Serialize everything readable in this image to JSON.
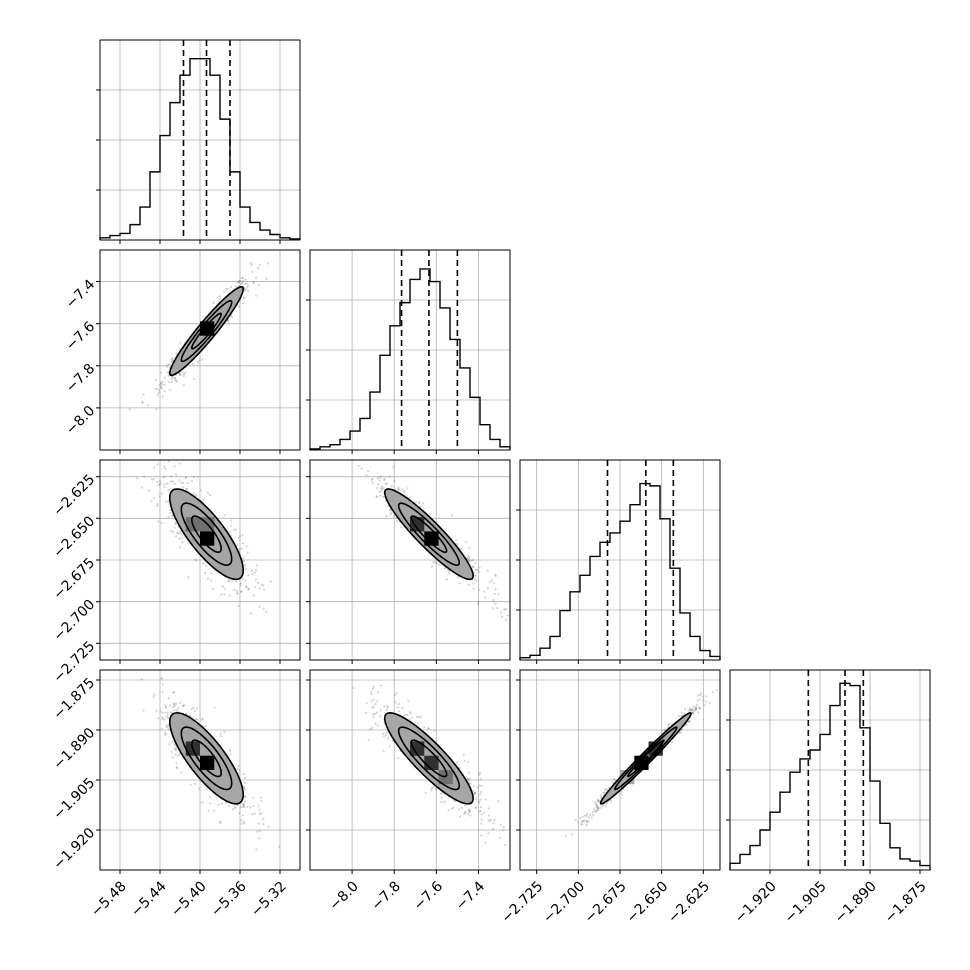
{
  "figure": {
    "type": "corner-plot",
    "colors": {
      "axes": "#000000",
      "grid": "#b0b0b0",
      "histogram": "#000000",
      "quantile_line": "#000000",
      "scatter": "#808080",
      "density": [
        "#ffffff",
        "#d9d9d9",
        "#a6a6a6",
        "#707070",
        "#303030",
        "#000000"
      ],
      "background": "#ffffff"
    }
  },
  "chart_data": {
    "type": "corner",
    "num_parameters": 4,
    "parameters": [
      {
        "index": 0,
        "label": "",
        "range": [
          -5.5,
          -5.3
        ],
        "ticks": [
          -5.48,
          -5.44,
          -5.4,
          -5.36,
          -5.32
        ],
        "tick_labels": [
          "−5.48",
          "−5.44",
          "−5.40",
          "−5.36",
          "−5.32"
        ],
        "quantiles": [
          -5.4165,
          -5.3935,
          -5.37
        ],
        "mean": -5.3935,
        "sd": 0.021,
        "hist": [
          2,
          4,
          6,
          14,
          30,
          62,
          95,
          125,
          150,
          165,
          165,
          150,
          110,
          62,
          30,
          16,
          9,
          5,
          2,
          1
        ],
        "hist_max": 182
      },
      {
        "index": 1,
        "label": "",
        "range": [
          -8.2,
          -7.25
        ],
        "ticks": [
          -8.0,
          -7.8,
          -7.6,
          -7.4
        ],
        "tick_labels": [
          "−8.0",
          "−7.8",
          "−7.6",
          "−7.4"
        ],
        "quantiles": [
          -7.765,
          -7.635,
          -7.5
        ],
        "mean": -7.635,
        "sd": 0.12,
        "hist": [
          1,
          3,
          5,
          10,
          18,
          30,
          55,
          90,
          118,
          140,
          162,
          172,
          160,
          135,
          105,
          78,
          50,
          24,
          10,
          3
        ],
        "hist_max": 190
      },
      {
        "index": 2,
        "label": "",
        "range": [
          -2.735,
          -2.615
        ],
        "ticks": [
          -2.725,
          -2.7,
          -2.675,
          -2.65,
          -2.625
        ],
        "tick_labels": [
          "−2.725",
          "−2.700",
          "−2.675",
          "−2.650",
          "−2.625"
        ],
        "quantiles": [
          -2.6825,
          -2.6595,
          -2.643
        ],
        "mean": -2.6595,
        "sd": 0.0155,
        "hist": [
          2,
          4,
          10,
          20,
          42,
          58,
          72,
          88,
          100,
          108,
          118,
          132,
          150,
          148,
          120,
          78,
          40,
          20,
          8,
          3
        ],
        "hist_max": 170
      },
      {
        "index": 3,
        "label": "",
        "range": [
          -1.932,
          -1.872
        ],
        "ticks": [
          -1.92,
          -1.905,
          -1.89,
          -1.875
        ],
        "tick_labels": [
          "−1.920",
          "−1.905",
          "−1.890",
          "−1.875"
        ],
        "quantiles": [
          -1.9085,
          -1.8975,
          -1.892
        ],
        "mean": -1.8985,
        "sd": 0.0078,
        "hist": [
          6,
          14,
          22,
          36,
          52,
          70,
          88,
          100,
          108,
          122,
          148,
          168,
          166,
          128,
          80,
          42,
          20,
          10,
          8,
          4
        ],
        "hist_max": 180
      }
    ],
    "correlations": [
      {
        "pair": [
          1,
          0
        ],
        "rho": 0.95
      },
      {
        "pair": [
          2,
          0
        ],
        "rho": -0.8
      },
      {
        "pair": [
          2,
          1
        ],
        "rho": -0.92
      },
      {
        "pair": [
          3,
          0
        ],
        "rho": -0.8
      },
      {
        "pair": [
          3,
          1
        ],
        "rho": -0.88
      },
      {
        "pair": [
          3,
          2
        ],
        "rho": 0.985
      }
    ],
    "contour_levels_sigma": [
      0.5,
      1.0,
      1.5
    ],
    "grid": true,
    "quantile_style": "dashed"
  }
}
